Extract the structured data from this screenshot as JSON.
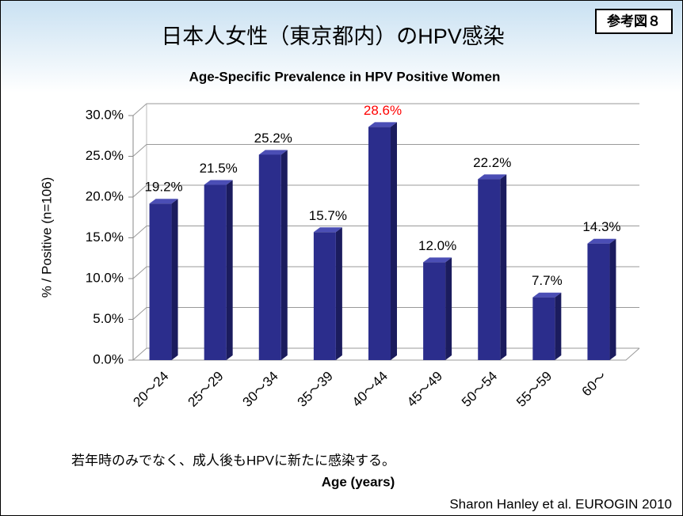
{
  "badge": "参考図８",
  "chart_data": {
    "type": "bar",
    "title": "日本人女性（東京都内）のHPV感染",
    "subtitle": "Age-Specific Prevalence in HPV Positive Women",
    "ylabel": "% / Positive (n=106)",
    "xlabel": "Age (years)",
    "note": "若年時のみでなく、成人後もHPVに新たに感染する。",
    "source": "Sharon Hanley et al. EUROGIN 2010",
    "categories": [
      "20～24",
      "25～29",
      "30～34",
      "35～39",
      "40～44",
      "45～49",
      "50～54",
      "55～59",
      "60～"
    ],
    "values": [
      19.2,
      21.5,
      25.2,
      15.7,
      28.6,
      12.0,
      22.2,
      7.7,
      14.3
    ],
    "value_labels": [
      "19.2%",
      "21.5%",
      "25.2%",
      "15.7%",
      "28.6%",
      "12.0%",
      "22.2%",
      "7.7%",
      "14.3%"
    ],
    "value_label_colors": [
      "#000000",
      "#000000",
      "#000000",
      "#000000",
      "#ff0000",
      "#000000",
      "#000000",
      "#000000",
      "#000000"
    ],
    "color": "#2b2d8c",
    "ylim": [
      0,
      30
    ],
    "yticks": [
      {
        "value": 0,
        "label": "0.0%"
      },
      {
        "value": 5,
        "label": "5.0%"
      },
      {
        "value": 10,
        "label": "10.0%"
      },
      {
        "value": 15,
        "label": "15.0%"
      },
      {
        "value": 20,
        "label": "20.0%"
      },
      {
        "value": 25,
        "label": "25.0%"
      },
      {
        "value": 30,
        "label": "30.0%"
      }
    ],
    "grid": true
  }
}
